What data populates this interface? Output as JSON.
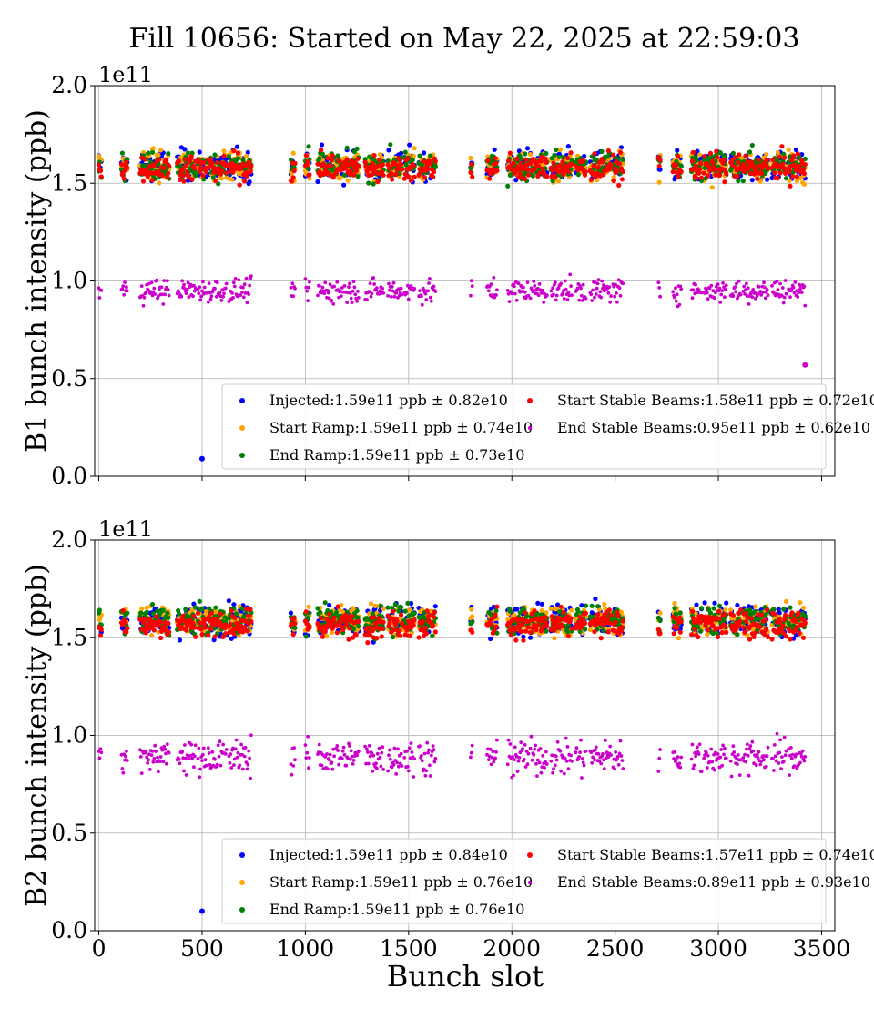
{
  "title": "Fill 10656: Started on May 22, 2025 at 22:59:03",
  "xlabel": "Bunch slot",
  "chart_data": [
    {
      "type": "scatter",
      "ylabel": "B1 bunch intensity (ppb)",
      "y_multiplier": "1e11",
      "xlim": [
        -20,
        3564
      ],
      "ylim": [
        0.0,
        2.0
      ],
      "x_ticks": [
        0,
        500,
        1000,
        1500,
        2000,
        2500,
        3000,
        3500
      ],
      "y_ticks": [
        0.0,
        0.5,
        1.0,
        1.5,
        2.0
      ],
      "grid": true,
      "legend_position": "lower right",
      "bunch_trains_x": [
        [
          0,
          15
        ],
        [
          110,
          140
        ],
        [
          200,
          340
        ],
        [
          380,
          470
        ],
        [
          480,
          520
        ],
        [
          530,
          620
        ],
        [
          630,
          740
        ],
        [
          930,
          950
        ],
        [
          1000,
          1020
        ],
        [
          1060,
          1140
        ],
        [
          1150,
          1260
        ],
        [
          1290,
          1380
        ],
        [
          1400,
          1470
        ],
        [
          1480,
          1530
        ],
        [
          1550,
          1630
        ],
        [
          1800,
          1810
        ],
        [
          1880,
          1930
        ],
        [
          1980,
          2080
        ],
        [
          2090,
          2170
        ],
        [
          2190,
          2290
        ],
        [
          2310,
          2360
        ],
        [
          2380,
          2480
        ],
        [
          2490,
          2540
        ],
        [
          2710,
          2720
        ],
        [
          2780,
          2820
        ],
        [
          2870,
          2920
        ],
        [
          2930,
          3040
        ],
        [
          3060,
          3110
        ],
        [
          3120,
          3240
        ],
        [
          3260,
          3330
        ],
        [
          3340,
          3420
        ]
      ],
      "series": [
        {
          "name": "Injected",
          "label": "Injected:1.59e11 ppb ± 0.82e10",
          "color": "#0000ff",
          "mean": 1.59,
          "std": 0.082,
          "outlier": {
            "x": 500,
            "y": 0.09
          }
        },
        {
          "name": "Start Ramp",
          "label": "Start Ramp:1.59e11 ppb ± 0.74e10",
          "color": "#ffa500",
          "mean": 1.59,
          "std": 0.074
        },
        {
          "name": "End Ramp",
          "label": "End Ramp:1.59e11 ppb ± 0.73e10",
          "color": "#008000",
          "mean": 1.59,
          "std": 0.073
        },
        {
          "name": "Start Stable Beams",
          "label": "Start Stable Beams:1.58e11 ppb ± 0.72e10",
          "color": "#ff0000",
          "mean": 1.58,
          "std": 0.072
        },
        {
          "name": "End Stable Beams",
          "label": "End Stable Beams:0.95e11 ppb ± 0.62e10",
          "color": "#cc00cc",
          "mean": 0.95,
          "std": 0.062,
          "outlier": {
            "x": 3420,
            "y": 0.57
          }
        }
      ]
    },
    {
      "type": "scatter",
      "ylabel": "B2 bunch intensity (ppb)",
      "y_multiplier": "1e11",
      "xlim": [
        -20,
        3564
      ],
      "ylim": [
        0.0,
        2.0
      ],
      "x_ticks": [
        0,
        500,
        1000,
        1500,
        2000,
        2500,
        3000,
        3500
      ],
      "y_ticks": [
        0.0,
        0.5,
        1.0,
        1.5,
        2.0
      ],
      "grid": true,
      "legend_position": "lower right",
      "bunch_trains_x": [
        [
          0,
          15
        ],
        [
          110,
          140
        ],
        [
          200,
          340
        ],
        [
          380,
          470
        ],
        [
          480,
          520
        ],
        [
          530,
          620
        ],
        [
          630,
          740
        ],
        [
          930,
          950
        ],
        [
          1000,
          1020
        ],
        [
          1060,
          1140
        ],
        [
          1150,
          1260
        ],
        [
          1290,
          1380
        ],
        [
          1400,
          1470
        ],
        [
          1480,
          1530
        ],
        [
          1550,
          1630
        ],
        [
          1800,
          1810
        ],
        [
          1880,
          1930
        ],
        [
          1980,
          2080
        ],
        [
          2090,
          2170
        ],
        [
          2190,
          2290
        ],
        [
          2310,
          2360
        ],
        [
          2380,
          2480
        ],
        [
          2490,
          2540
        ],
        [
          2710,
          2720
        ],
        [
          2780,
          2820
        ],
        [
          2870,
          2920
        ],
        [
          2930,
          3040
        ],
        [
          3060,
          3110
        ],
        [
          3120,
          3240
        ],
        [
          3260,
          3330
        ],
        [
          3340,
          3420
        ]
      ],
      "series": [
        {
          "name": "Injected",
          "label": "Injected:1.59e11 ppb ± 0.84e10",
          "color": "#0000ff",
          "mean": 1.59,
          "std": 0.084,
          "outlier": {
            "x": 500,
            "y": 0.1
          }
        },
        {
          "name": "Start Ramp",
          "label": "Start Ramp:1.59e11 ppb ± 0.76e10",
          "color": "#ffa500",
          "mean": 1.59,
          "std": 0.076
        },
        {
          "name": "End Ramp",
          "label": "End Ramp:1.59e11 ppb ± 0.76e10",
          "color": "#008000",
          "mean": 1.59,
          "std": 0.076
        },
        {
          "name": "Start Stable Beams",
          "label": "Start Stable Beams:1.57e11 ppb ± 0.74e10",
          "color": "#ff0000",
          "mean": 1.57,
          "std": 0.074
        },
        {
          "name": "End Stable Beams",
          "label": "End Stable Beams:0.89e11 ppb ± 0.93e10",
          "color": "#cc00cc",
          "mean": 0.89,
          "std": 0.093
        }
      ]
    }
  ]
}
